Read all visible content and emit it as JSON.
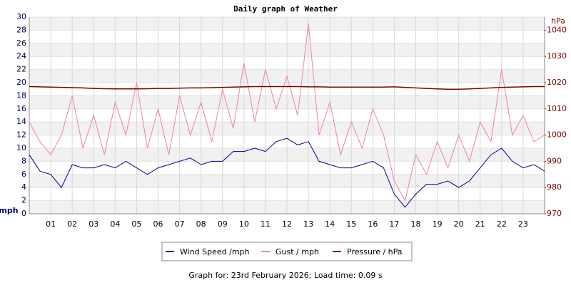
{
  "chart_data": {
    "type": "line",
    "title": "Daily graph of Weather",
    "y_label": "mph",
    "y2_label": "hPa",
    "footer": "Graph for: 23rd February 2026; Load time: 0.09 s",
    "x": [
      0,
      0.5,
      1,
      1.5,
      2,
      2.5,
      3,
      3.5,
      4,
      4.5,
      5,
      5.5,
      6,
      6.5,
      7,
      7.5,
      8,
      8.5,
      9,
      9.5,
      10,
      10.5,
      11,
      11.5,
      12,
      12.5,
      13,
      13.5,
      14,
      14.5,
      15,
      15.5,
      16,
      16.5,
      17,
      17.5,
      18,
      18.5,
      19,
      19.5,
      20,
      20.5,
      21,
      21.5,
      22,
      22.5,
      23,
      23.5,
      24
    ],
    "xlim": [
      0,
      24
    ],
    "xticks": [
      {
        "value": 1,
        "label": "01"
      },
      {
        "value": 2,
        "label": "02"
      },
      {
        "value": 3,
        "label": "03"
      },
      {
        "value": 4,
        "label": "04"
      },
      {
        "value": 5,
        "label": "05"
      },
      {
        "value": 6,
        "label": "06"
      },
      {
        "value": 7,
        "label": "07"
      },
      {
        "value": 8,
        "label": "08"
      },
      {
        "value": 9,
        "label": "09"
      },
      10,
      11,
      12,
      13,
      14,
      15,
      16,
      17,
      18,
      19,
      20,
      21,
      22,
      23
    ],
    "ylim": [
      0,
      30
    ],
    "yticks": [
      0,
      2,
      4,
      6,
      8,
      10,
      12,
      14,
      16,
      18,
      20,
      22,
      24,
      26,
      28,
      30
    ],
    "y2lim": [
      970,
      1045
    ],
    "y2ticks": [
      970,
      980,
      990,
      1000,
      1010,
      1020,
      1030,
      1040
    ],
    "grid": true,
    "series": [
      {
        "name": "Wind Speed /mph",
        "color": "#000080",
        "values": [
          9,
          6.5,
          6,
          4,
          7.5,
          7,
          7,
          7.5,
          7,
          8,
          7,
          6,
          7,
          7.5,
          8,
          8.5,
          7.5,
          8,
          8,
          9.5,
          9.5,
          10,
          9.5,
          11,
          11.5,
          10.5,
          11,
          8,
          7.5,
          7,
          7,
          7.5,
          8,
          7,
          3,
          1,
          3,
          4.5,
          4.5,
          5,
          4,
          5,
          7,
          9,
          10,
          8,
          7,
          7.5,
          6.5
        ]
      },
      {
        "name": "Gust / mph",
        "color": "#f080a8",
        "values": [
          14,
          11,
          9,
          12,
          18,
          10,
          15,
          9,
          17,
          12,
          20,
          10,
          16,
          9,
          18,
          12,
          17,
          11,
          19,
          13,
          23,
          14,
          22,
          16,
          21,
          15,
          29,
          12,
          17,
          9,
          14,
          10,
          16,
          12,
          5,
          2,
          9,
          6,
          11,
          7,
          12,
          8,
          14,
          11,
          22,
          12,
          15,
          11,
          12
        ]
      },
      {
        "name": "Pressure / hPa",
        "color": "#800000",
        "axis": "y2",
        "values": [
          1018.5,
          1018.4,
          1018.3,
          1018.2,
          1018.1,
          1018,
          1017.8,
          1017.7,
          1017.6,
          1017.6,
          1017.6,
          1017.7,
          1017.8,
          1017.8,
          1017.9,
          1018,
          1018,
          1018.1,
          1018.2,
          1018.3,
          1018.4,
          1018.5,
          1018.5,
          1018.5,
          1018.5,
          1018.5,
          1018.4,
          1018.4,
          1018.3,
          1018.3,
          1018.3,
          1018.3,
          1018.3,
          1018.3,
          1018.4,
          1018.2,
          1018,
          1017.8,
          1017.6,
          1017.5,
          1017.5,
          1017.6,
          1017.8,
          1018,
          1018.2,
          1018.3,
          1018.4,
          1018.5,
          1018.5
        ]
      }
    ]
  }
}
